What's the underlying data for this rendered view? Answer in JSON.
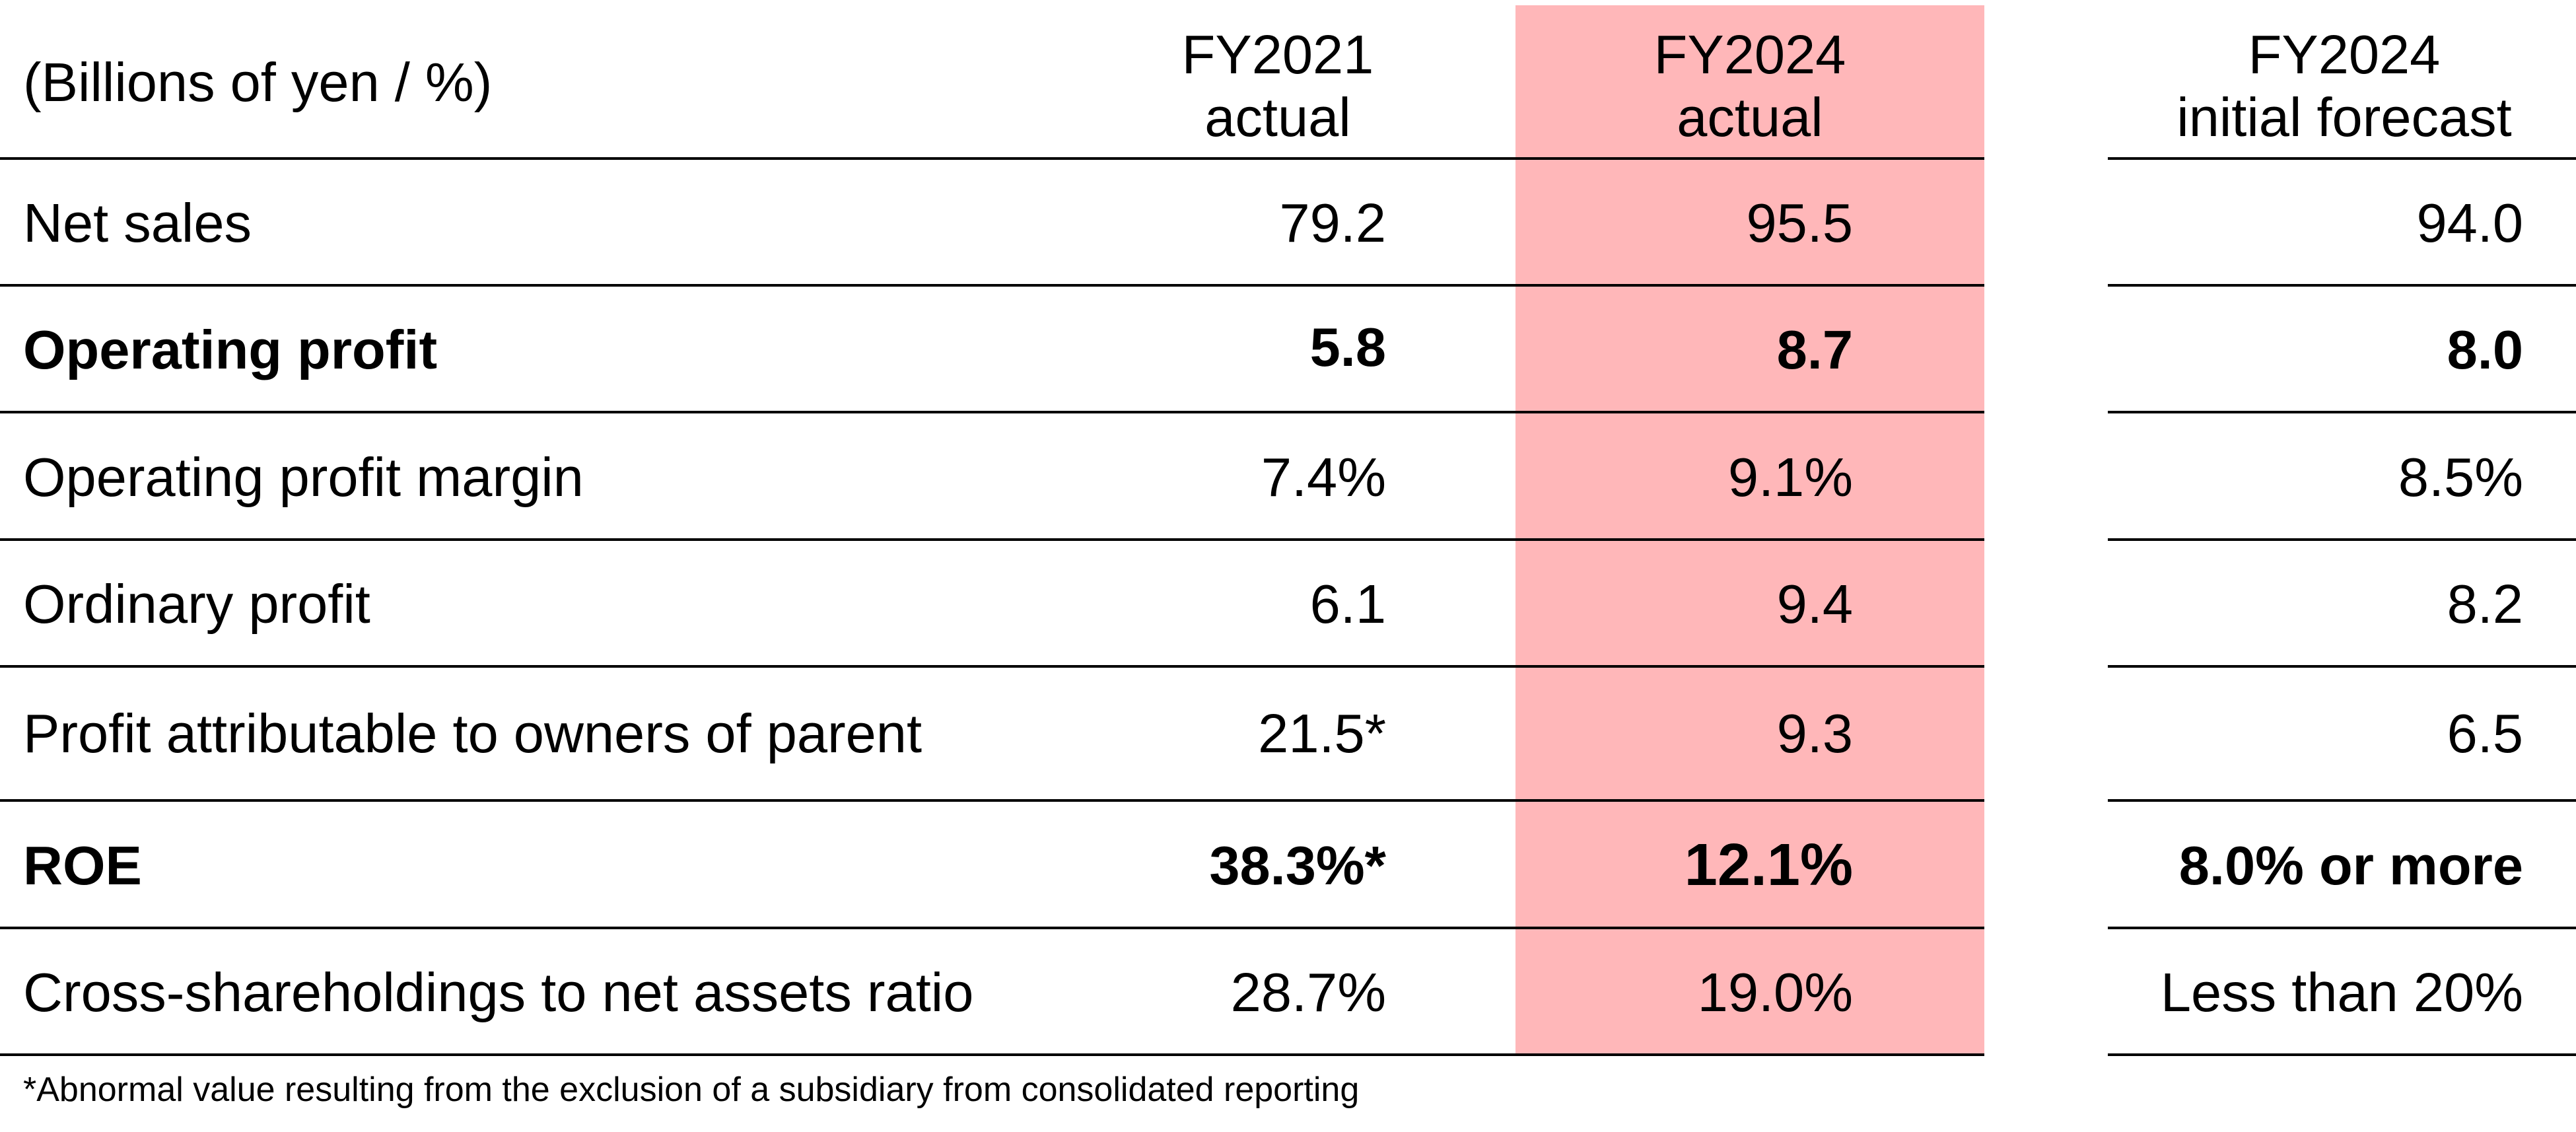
{
  "table": {
    "unit_label": "(Billions of yen / %)",
    "columns": [
      {
        "line1": "FY2021",
        "line2": "actual"
      },
      {
        "line1": "FY2024",
        "line2": "actual"
      },
      {
        "line1": "FY2024",
        "line2": "initial forecast"
      }
    ],
    "highlight_color": "#ffb7b9",
    "rows": [
      {
        "label": "Net sales",
        "bold": false,
        "values": [
          "79.2",
          "95.5",
          "94.0"
        ]
      },
      {
        "label": "Operating profit",
        "bold": true,
        "values": [
          "5.8",
          "8.7",
          "8.0"
        ]
      },
      {
        "label": "Operating profit margin",
        "bold": false,
        "values": [
          "7.4%",
          "9.1%",
          "8.5%"
        ]
      },
      {
        "label": "Ordinary profit",
        "bold": false,
        "values": [
          "6.1",
          "9.4",
          "8.2"
        ]
      },
      {
        "label": "Profit attributable to owners of parent",
        "bold": false,
        "values": [
          "21.5*",
          "9.3",
          "6.5"
        ]
      },
      {
        "label": "ROE",
        "bold": true,
        "values": [
          "38.3%*",
          "12.1%",
          "8.0% or more"
        ]
      },
      {
        "label": "Cross-shareholdings to net assets ratio",
        "bold": false,
        "values": [
          "28.7%",
          "19.0%",
          "Less than 20%"
        ]
      }
    ],
    "footnote": "*Abnormal value resulting from the exclusion of a subsidiary from consolidated reporting"
  }
}
